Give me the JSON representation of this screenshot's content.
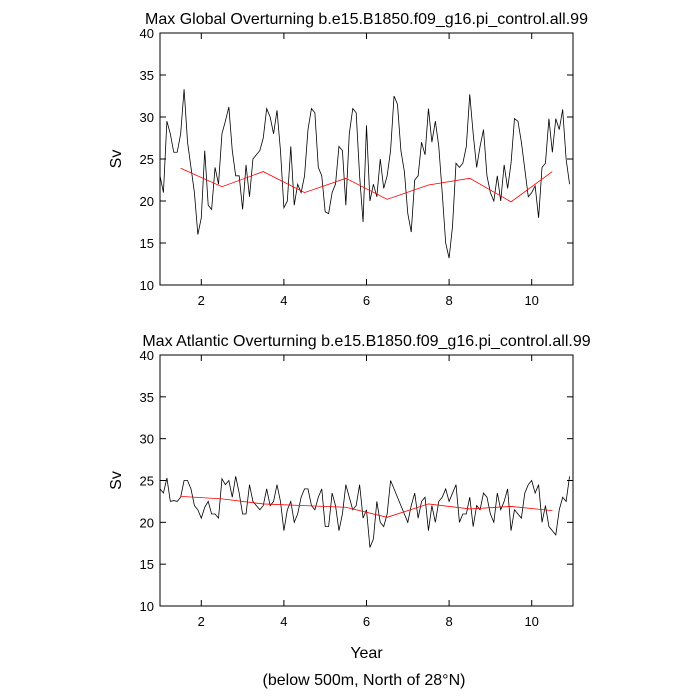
{
  "chart_data": [
    {
      "type": "line",
      "title": "Max Global Overturning b.e15.B1850.f09_g16.pi_control.all.99",
      "ylabel": "Sv",
      "xlim": [
        1,
        11
      ],
      "xticks": [
        2,
        4,
        6,
        8,
        10
      ],
      "ylim": [
        10,
        40
      ],
      "yticks": [
        10,
        15,
        20,
        25,
        30,
        35,
        40
      ],
      "series": [
        {
          "color": "#000000",
          "x": [
            1,
            1.083,
            1.167,
            1.25,
            1.333,
            1.417,
            1.5,
            1.583,
            1.667,
            1.75,
            1.833,
            1.917,
            2,
            2.083,
            2.167,
            2.25,
            2.333,
            2.417,
            2.5,
            2.583,
            2.667,
            2.75,
            2.833,
            2.917,
            3,
            3.083,
            3.167,
            3.25,
            3.333,
            3.417,
            3.5,
            3.583,
            3.667,
            3.75,
            3.833,
            3.917,
            4,
            4.083,
            4.167,
            4.25,
            4.333,
            4.417,
            4.5,
            4.583,
            4.667,
            4.75,
            4.833,
            4.917,
            5,
            5.083,
            5.167,
            5.25,
            5.333,
            5.417,
            5.5,
            5.583,
            5.667,
            5.75,
            5.833,
            5.917,
            6,
            6.083,
            6.167,
            6.25,
            6.333,
            6.417,
            6.5,
            6.583,
            6.667,
            6.75,
            6.833,
            6.917,
            7,
            7.083,
            7.167,
            7.25,
            7.333,
            7.417,
            7.5,
            7.583,
            7.667,
            7.75,
            7.833,
            7.917,
            8,
            8.083,
            8.167,
            8.25,
            8.333,
            8.417,
            8.5,
            8.583,
            8.667,
            8.75,
            8.833,
            8.917,
            9,
            9.083,
            9.167,
            9.25,
            9.333,
            9.417,
            9.5,
            9.583,
            9.667,
            9.75,
            9.833,
            9.917,
            10,
            10.083,
            10.167,
            10.25,
            10.333,
            10.417,
            10.5,
            10.583,
            10.667,
            10.75,
            10.833,
            10.917
          ],
          "values": [
            23,
            21,
            29.5,
            28,
            25.8,
            25.8,
            28,
            33.3,
            27,
            24,
            21,
            16,
            18,
            26,
            19.5,
            19,
            24,
            22,
            28,
            29.5,
            31.2,
            26,
            23,
            23,
            19,
            24.3,
            20.5,
            25,
            25.5,
            26,
            27.5,
            31,
            30,
            28,
            30.8,
            26,
            19.2,
            20,
            26.5,
            19.5,
            22,
            21,
            23,
            28.5,
            31,
            30.5,
            24,
            23,
            18.7,
            18.5,
            21,
            22,
            26.5,
            26,
            19.5,
            28,
            31,
            30.5,
            23,
            17.5,
            29,
            20,
            22,
            20.5,
            25,
            21.5,
            23,
            26,
            32.5,
            31.5,
            26,
            23.5,
            18.5,
            16.3,
            22.5,
            23,
            27,
            25.5,
            31,
            27,
            29.5,
            26.5,
            21,
            15,
            13.2,
            17,
            24.5,
            24,
            24.5,
            26.5,
            32.7,
            28,
            24,
            26.5,
            28.5,
            23,
            21,
            20,
            23,
            20,
            24.3,
            21.5,
            24.5,
            29.8,
            29.5,
            27,
            23.8,
            20.5,
            21,
            21.8,
            18,
            24,
            24.5,
            29.8,
            25.8,
            29.8,
            28.5,
            30.9,
            25,
            22
          ]
        },
        {
          "color": "#ff0000",
          "x": [
            1.5,
            2.5,
            3.5,
            4.5,
            5.5,
            6.5,
            7.5,
            8.5,
            9.5,
            10.5
          ],
          "values": [
            23.9,
            21.7,
            23.5,
            21,
            22.7,
            20.2,
            21.9,
            22.7,
            19.9,
            23.5
          ]
        }
      ]
    },
    {
      "type": "line",
      "title": "Max Atlantic Overturning b.e15.B1850.f09_g16.pi_control.all.99",
      "ylabel": "Sv",
      "xlabel": "Year",
      "xlim": [
        1,
        11
      ],
      "xticks": [
        2,
        4,
        6,
        8,
        10
      ],
      "ylim": [
        10,
        40
      ],
      "yticks": [
        10,
        15,
        20,
        25,
        30,
        35,
        40
      ],
      "series": [
        {
          "color": "#000000",
          "x": [
            1,
            1.083,
            1.167,
            1.25,
            1.333,
            1.417,
            1.5,
            1.583,
            1.667,
            1.75,
            1.833,
            1.917,
            2,
            2.083,
            2.167,
            2.25,
            2.333,
            2.417,
            2.5,
            2.583,
            2.667,
            2.75,
            2.833,
            2.917,
            3,
            3.083,
            3.167,
            3.25,
            3.333,
            3.417,
            3.5,
            3.583,
            3.667,
            3.75,
            3.833,
            3.917,
            4,
            4.083,
            4.167,
            4.25,
            4.333,
            4.417,
            4.5,
            4.583,
            4.667,
            4.75,
            4.833,
            4.917,
            5,
            5.083,
            5.167,
            5.25,
            5.333,
            5.417,
            5.5,
            5.583,
            5.667,
            5.75,
            5.833,
            5.917,
            6,
            6.083,
            6.167,
            6.25,
            6.333,
            6.417,
            6.5,
            6.583,
            6.667,
            6.75,
            6.833,
            6.917,
            7,
            7.083,
            7.167,
            7.25,
            7.333,
            7.417,
            7.5,
            7.583,
            7.667,
            7.75,
            7.833,
            7.917,
            8,
            8.083,
            8.167,
            8.25,
            8.333,
            8.417,
            8.5,
            8.583,
            8.667,
            8.75,
            8.833,
            8.917,
            9,
            9.083,
            9.167,
            9.25,
            9.333,
            9.417,
            9.5,
            9.583,
            9.667,
            9.75,
            9.833,
            9.917,
            10,
            10.083,
            10.167,
            10.25,
            10.333,
            10.417,
            10.5,
            10.583,
            10.667,
            10.75,
            10.833,
            10.917
          ],
          "values": [
            24,
            23.5,
            25.3,
            22.5,
            22.6,
            22.5,
            23,
            25,
            25,
            24,
            22,
            21.5,
            20.5,
            21.8,
            22.5,
            21,
            21,
            20.5,
            25.2,
            24.5,
            25,
            23,
            25.5,
            23.5,
            21,
            21,
            24.5,
            22.5,
            22,
            21.5,
            22,
            24,
            22,
            22.5,
            24.5,
            22.5,
            19,
            21.5,
            22.5,
            20,
            21,
            23,
            24,
            24,
            22,
            21.5,
            23,
            24,
            19.5,
            19.5,
            23.5,
            22,
            19,
            21,
            24.5,
            23,
            21.5,
            22,
            24.5,
            20.5,
            21.5,
            17,
            18,
            22.5,
            20,
            19.5,
            21,
            25,
            24,
            23,
            22,
            21,
            20,
            22,
            23.5,
            20.5,
            22.5,
            23,
            19,
            22,
            20,
            22.5,
            23,
            24,
            22.5,
            23.5,
            24.5,
            20,
            21,
            21,
            23,
            19.5,
            22,
            21.5,
            23.5,
            23,
            21,
            20,
            23.5,
            21.5,
            22.5,
            24,
            19,
            21.5,
            21,
            20.5,
            23.5,
            24.5,
            25,
            23.5,
            24.5,
            20,
            22,
            19.5,
            19,
            18.5,
            21.5,
            23,
            22.5,
            25.5
          ]
        },
        {
          "color": "#ff0000",
          "x": [
            1.5,
            2.5,
            3.5,
            4.5,
            5.5,
            6.5,
            7.5,
            8.5,
            9.5,
            10.5
          ],
          "values": [
            23.1,
            22.8,
            22.2,
            22,
            21.8,
            20.6,
            22.2,
            21.6,
            21.9,
            21.4
          ]
        }
      ]
    }
  ],
  "footnote": "(below 500m, North of 28°N)"
}
